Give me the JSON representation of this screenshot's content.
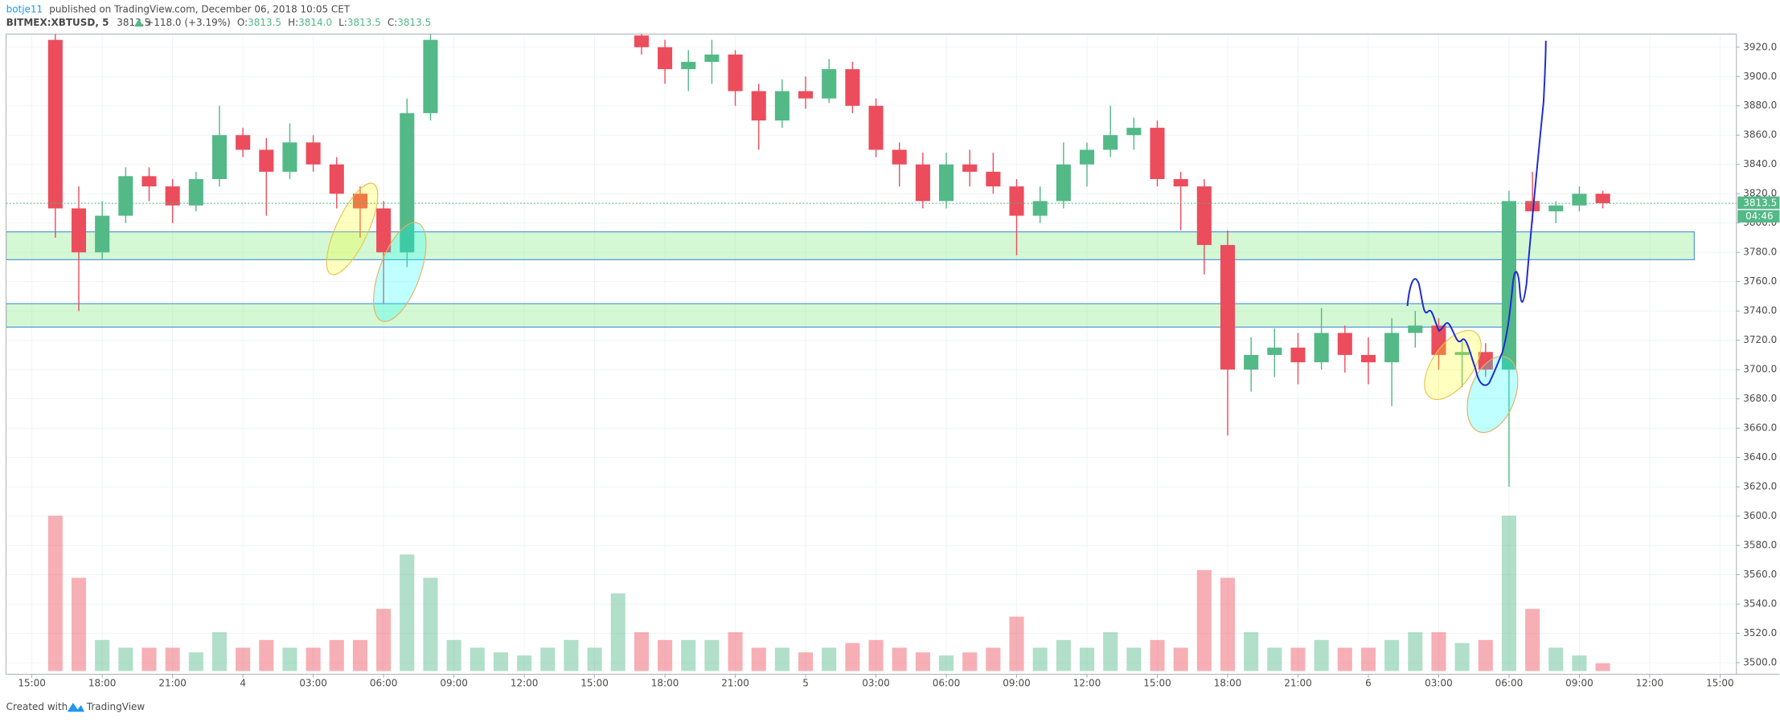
{
  "header": {
    "author": "botje11",
    "published": "published on TradingView.com, December 06, 2018 10:05 CET",
    "symbol": "BITMEX:XBTUSD, 5",
    "price": "3813.5",
    "change": "+118.0 (+3.19%)",
    "o_label": "O:",
    "o_value": "3813.5",
    "h_label": "H:",
    "h_value": "3814.0",
    "l_label": "L:",
    "l_value": "3813.5",
    "c_label": "C:",
    "c_value": "3813.5"
  },
  "footer": {
    "created": "Created with",
    "brand": "TradingView"
  },
  "chart_data": {
    "type": "candlestick",
    "up_color": "#53b987",
    "down_color": "#eb4d5c",
    "xlim": [
      -1.1,
      72.7
    ],
    "ylim": [
      3492,
      3929
    ],
    "grid": true,
    "xticks": [
      {
        "value": 0,
        "label": "15:00"
      },
      {
        "value": 3,
        "label": "18:00"
      },
      {
        "value": 6,
        "label": "21:00"
      },
      {
        "value": 9,
        "label": "4"
      },
      {
        "value": 12,
        "label": "03:00"
      },
      {
        "value": 15,
        "label": "06:00"
      },
      {
        "value": 18,
        "label": "09:00"
      },
      {
        "value": 21,
        "label": "12:00"
      },
      {
        "value": 24,
        "label": "15:00"
      },
      {
        "value": 27,
        "label": "18:00"
      },
      {
        "value": 30,
        "label": "21:00"
      },
      {
        "value": 33,
        "label": "5"
      },
      {
        "value": 36,
        "label": "03:00"
      },
      {
        "value": 39,
        "label": "06:00"
      },
      {
        "value": 42,
        "label": "09:00"
      },
      {
        "value": 45,
        "label": "12:00"
      },
      {
        "value": 48,
        "label": "15:00"
      },
      {
        "value": 51,
        "label": "18:00"
      },
      {
        "value": 54,
        "label": "21:00"
      },
      {
        "value": 57,
        "label": "6"
      },
      {
        "value": 60,
        "label": "03:00"
      },
      {
        "value": 63,
        "label": "06:00"
      },
      {
        "value": 66,
        "label": "09:00"
      },
      {
        "value": 69,
        "label": "12:00"
      },
      {
        "value": 72,
        "label": "15:00"
      }
    ],
    "yticks": [
      {
        "value": 3500,
        "label": "3500.0"
      },
      {
        "value": 3520,
        "label": "3520.0"
      },
      {
        "value": 3540,
        "label": "3540.0"
      },
      {
        "value": 3560,
        "label": "3560.0"
      },
      {
        "value": 3580,
        "label": "3580.0"
      },
      {
        "value": 3600,
        "label": "3600.0"
      },
      {
        "value": 3620,
        "label": "3620.0"
      },
      {
        "value": 3640,
        "label": "3640.0"
      },
      {
        "value": 3660,
        "label": "3660.0"
      },
      {
        "value": 3680,
        "label": "3680.0"
      },
      {
        "value": 3700,
        "label": "3700.0"
      },
      {
        "value": 3720,
        "label": "3720.0"
      },
      {
        "value": 3740,
        "label": "3740.0"
      },
      {
        "value": 3760,
        "label": "3760.0"
      },
      {
        "value": 3780,
        "label": "3780.0"
      },
      {
        "value": 3800,
        "label": "3800.0"
      },
      {
        "value": 3820,
        "label": "3820.0"
      },
      {
        "value": 3840,
        "label": "3840.0"
      },
      {
        "value": 3860,
        "label": "3860.0"
      },
      {
        "value": 3880,
        "label": "3880.0"
      },
      {
        "value": 3900,
        "label": "3900.0"
      },
      {
        "value": 3920,
        "label": "3920.0"
      }
    ],
    "last_price": 3813.5,
    "countdown": "04:46",
    "zones": [
      {
        "x": [
          -1.1,
          70.9
        ],
        "low": 3775,
        "high": 3794
      },
      {
        "x": [
          -1.1,
          62.9
        ],
        "low": 3729,
        "high": 3745
      }
    ],
    "x": [
      1,
      2,
      3,
      4,
      5,
      6,
      7,
      8,
      9,
      10,
      11,
      12,
      13,
      14,
      15,
      16,
      17,
      18,
      19,
      20,
      21,
      22,
      23,
      24,
      25,
      26,
      27,
      28,
      29,
      30,
      31,
      32,
      33,
      34,
      35,
      36,
      37,
      38,
      39,
      40,
      41,
      42,
      43,
      44,
      45,
      46,
      47,
      48,
      49,
      50,
      51,
      52,
      53,
      54,
      55,
      56,
      57,
      58,
      59,
      60,
      61,
      62,
      63,
      64,
      65,
      66,
      67
    ],
    "open": [
      3925,
      3810,
      3780,
      3805,
      3832,
      3825,
      3812,
      3830,
      3860,
      3850,
      3835,
      3855,
      3840,
      3820,
      3810,
      3780,
      3875,
      null,
      null,
      null,
      null,
      null,
      null,
      null,
      null,
      3928,
      3920,
      3905,
      3910,
      3915,
      3890,
      3870,
      3890,
      3885,
      3905,
      3880,
      3850,
      3840,
      3815,
      3840,
      3835,
      3825,
      3805,
      3815,
      3840,
      3850,
      3860,
      3865,
      3830,
      3825,
      3785,
      3700,
      3710,
      3715,
      3705,
      3725,
      3710,
      3705,
      3725,
      3730,
      3710,
      3712,
      3700,
      3815,
      3808,
      3812,
      3820
    ],
    "high": [
      3929,
      3825,
      3815,
      3838,
      3838,
      3830,
      3835,
      3880,
      3865,
      3858,
      3868,
      3860,
      3845,
      3825,
      3815,
      3885,
      3929,
      null,
      null,
      null,
      null,
      null,
      null,
      null,
      null,
      3929,
      3925,
      3918,
      3925,
      3918,
      3895,
      3898,
      3900,
      3912,
      3910,
      3885,
      3855,
      3848,
      3848,
      3850,
      3848,
      3830,
      3825,
      3855,
      3855,
      3880,
      3872,
      3870,
      3835,
      3830,
      3795,
      3722,
      3728,
      3725,
      3742,
      3730,
      3722,
      3735,
      3740,
      3735,
      3720,
      3718,
      3822,
      3835,
      3815,
      3825,
      3822
    ],
    "low": [
      3790,
      3740,
      3775,
      3800,
      3815,
      3800,
      3808,
      3825,
      3845,
      3805,
      3830,
      3835,
      3810,
      3790,
      3745,
      3770,
      3870,
      null,
      null,
      null,
      null,
      null,
      null,
      null,
      null,
      3915,
      3895,
      3890,
      3895,
      3880,
      3850,
      3865,
      3878,
      3882,
      3875,
      3845,
      3825,
      3810,
      3810,
      3825,
      3820,
      3778,
      3800,
      3810,
      3825,
      3845,
      3850,
      3825,
      3795,
      3765,
      3655,
      3685,
      3695,
      3690,
      3700,
      3698,
      3690,
      3675,
      3715,
      3700,
      3688,
      3695,
      3620,
      3800,
      3800,
      3808,
      3810
    ],
    "close": [
      3810,
      3780,
      3805,
      3832,
      3825,
      3812,
      3830,
      3860,
      3850,
      3835,
      3855,
      3840,
      3820,
      3810,
      3780,
      3875,
      3925,
      null,
      null,
      null,
      null,
      null,
      null,
      null,
      null,
      3920,
      3905,
      3910,
      3915,
      3890,
      3870,
      3890,
      3885,
      3905,
      3880,
      3850,
      3840,
      3815,
      3840,
      3835,
      3825,
      3805,
      3815,
      3840,
      3850,
      3860,
      3865,
      3830,
      3825,
      3785,
      3700,
      3710,
      3715,
      3705,
      3725,
      3710,
      3705,
      3725,
      3730,
      3710,
      3712,
      3700,
      3815,
      3808,
      3812,
      3820,
      3813.5
    ],
    "volume": [
      100,
      60,
      20,
      15,
      15,
      15,
      12,
      25,
      15,
      20,
      15,
      15,
      20,
      20,
      40,
      75,
      60,
      20,
      15,
      12,
      10,
      15,
      20,
      15,
      50,
      25,
      20,
      20,
      20,
      25,
      15,
      15,
      12,
      15,
      18,
      20,
      15,
      12,
      10,
      12,
      15,
      35,
      15,
      20,
      15,
      25,
      15,
      20,
      15,
      65,
      60,
      25,
      15,
      15,
      20,
      15,
      15,
      20,
      25,
      25,
      18,
      20,
      100,
      40,
      15,
      10,
      5
    ]
  }
}
